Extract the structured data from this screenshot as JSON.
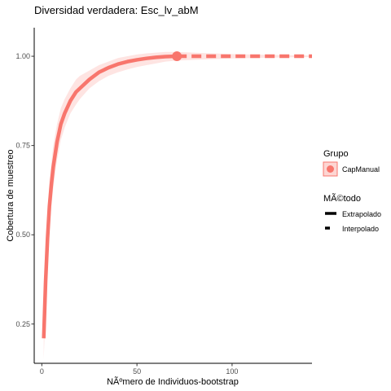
{
  "chart_data": {
    "type": "line",
    "title": "Diversidad verdadera: Esc_lv_abM",
    "xlabel": "NÃºmero de Individuos-bootstrap",
    "ylabel": "Cobertura de muestreo",
    "xlim": [
      -4,
      142
    ],
    "ylim": [
      0.14,
      1.08
    ],
    "x_ticks": [
      0,
      50,
      100
    ],
    "y_ticks": [
      0.25,
      0.5,
      0.75,
      1.0
    ],
    "x_tick_labels": [
      "0",
      "50",
      "100"
    ],
    "y_tick_labels": [
      "0.25",
      "0.50",
      "0.75",
      "1.00"
    ],
    "grid": false,
    "legend_position": "right",
    "series": [
      {
        "name": "CapManual",
        "color": "#F8766D",
        "band_color": "#F8766D",
        "observed_point": {
          "x": 71,
          "y": 1.0
        },
        "interpolated": {
          "x": [
            1,
            2,
            3,
            4,
            5,
            6,
            8,
            10,
            12,
            15,
            18,
            20,
            25,
            30,
            35,
            40,
            45,
            50,
            55,
            60,
            65,
            71
          ],
          "y": [
            0.21,
            0.37,
            0.49,
            0.58,
            0.64,
            0.69,
            0.76,
            0.81,
            0.84,
            0.875,
            0.9,
            0.91,
            0.935,
            0.955,
            0.968,
            0.978,
            0.985,
            0.99,
            0.994,
            0.997,
            0.999,
            1.0
          ],
          "lower": [
            0.15,
            0.3,
            0.42,
            0.51,
            0.58,
            0.63,
            0.71,
            0.765,
            0.8,
            0.84,
            0.865,
            0.88,
            0.91,
            0.93,
            0.945,
            0.955,
            0.963,
            0.97,
            0.975,
            0.98,
            0.985,
            0.988
          ],
          "upper": [
            0.27,
            0.44,
            0.56,
            0.65,
            0.7,
            0.75,
            0.81,
            0.855,
            0.88,
            0.91,
            0.935,
            0.945,
            0.96,
            0.975,
            0.985,
            0.995,
            1.0,
            1.005,
            1.008,
            1.01,
            1.012,
            1.012
          ]
        },
        "extrapolated": {
          "x": [
            71,
            80,
            90,
            100,
            110,
            120,
            130,
            142
          ],
          "y": [
            1.0,
            1.0,
            1.0,
            1.0,
            1.0,
            1.0,
            1.0,
            1.0
          ],
          "lower": [
            0.988,
            0.99,
            0.992,
            0.994,
            0.995,
            0.996,
            0.997,
            0.998
          ],
          "upper": [
            1.012,
            1.01,
            1.008,
            1.006,
            1.005,
            1.004,
            1.003,
            1.002
          ]
        }
      }
    ]
  },
  "legend": {
    "group_title": "Grupo",
    "group_items": [
      {
        "label": "CapManual",
        "color": "#F8766D"
      }
    ],
    "method_title": "MÃ©todo",
    "method_items": [
      {
        "label": "Extrapolado",
        "style": "solid"
      },
      {
        "label": "Interpolado",
        "style": "dashed"
      }
    ]
  }
}
